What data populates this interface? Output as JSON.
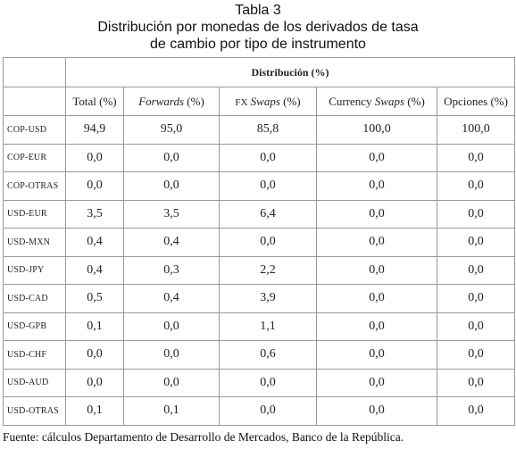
{
  "header": {
    "title": [
      "Tabla 3",
      "Distribución por monedas de los derivados de tasa",
      "de cambio por tipo de instrumento"
    ]
  },
  "table": {
    "group_header": "Distribución (%)",
    "columns": [
      [
        {
          "text": "Total (%)"
        }
      ],
      [
        {
          "text": "Forwards",
          "italic": true
        },
        {
          "text": " (%)"
        }
      ],
      [
        {
          "text": "FX",
          "small_caps": true
        },
        {
          "text": " Swaps",
          "italic": true
        },
        {
          "text": " (%)"
        }
      ],
      [
        {
          "text": "Currency "
        },
        {
          "text": "Swaps",
          "italic": true
        },
        {
          "text": " (%)"
        }
      ],
      [
        {
          "text": "Opciones (%)"
        }
      ]
    ],
    "rows": [
      [
        "COP-USD",
        "94,9",
        "95,0",
        "85,8",
        "100,0",
        "100,0"
      ],
      [
        "COP-EUR",
        "0,0",
        "0,0",
        "0,0",
        "0,0",
        "0,0"
      ],
      [
        "COP-OTRAS",
        "0,0",
        "0,0",
        "0,0",
        "0,0",
        "0,0"
      ],
      [
        "USD-EUR",
        "3,5",
        "3,5",
        "6,4",
        "0,0",
        "0,0"
      ],
      [
        "USD-MXN",
        "0,4",
        "0,4",
        "0,0",
        "0,0",
        "0,0"
      ],
      [
        "USD-JPY",
        "0,4",
        "0,3",
        "2,2",
        "0,0",
        "0,0"
      ],
      [
        "USD-CAD",
        "0,5",
        "0,4",
        "3,9",
        "0,0",
        "0,0"
      ],
      [
        "USD-GPB",
        "0,1",
        "0,0",
        "1,1",
        "0,0",
        "0,0"
      ],
      [
        "USD-CHF",
        "0,0",
        "0,0",
        "0,6",
        "0,0",
        "0,0"
      ],
      [
        "USD-AUD",
        "0,0",
        "0,0",
        "0,0",
        "0,0",
        "0,0"
      ],
      [
        "USD-OTRAS",
        "0,1",
        "0,1",
        "0,0",
        "0,0",
        "0,0"
      ]
    ]
  },
  "footer": {
    "source": "Fuente: cálculos Departamento de Desarrollo de Mercados, Banco de la República."
  }
}
